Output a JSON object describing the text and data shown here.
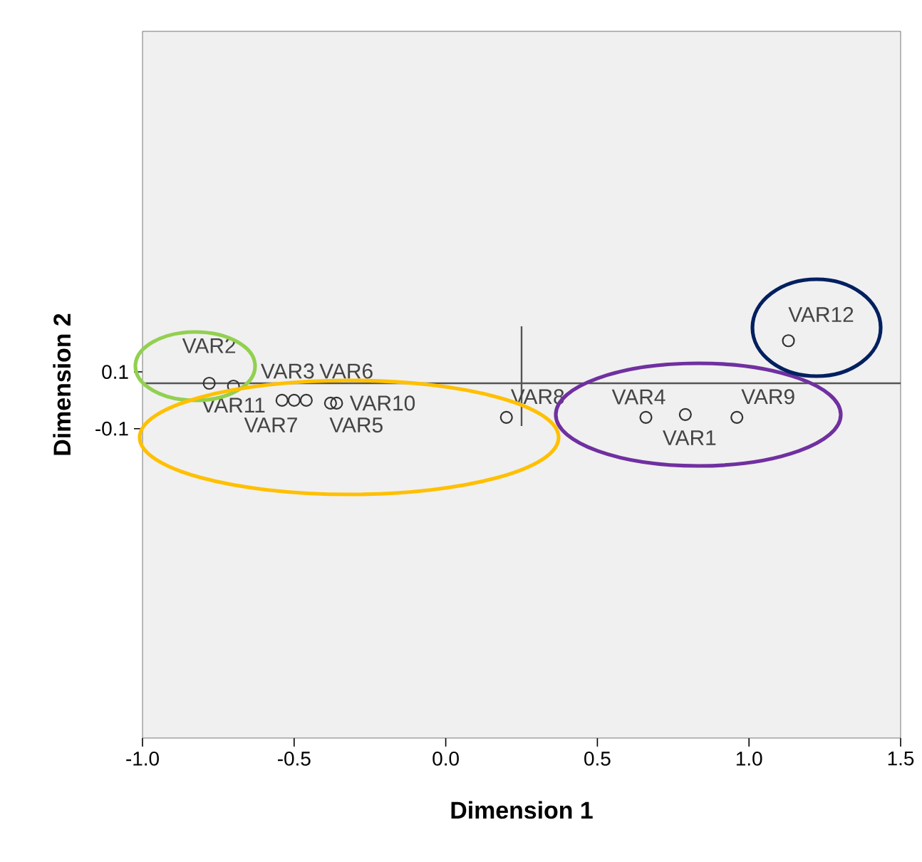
{
  "chart_data": {
    "type": "scatter",
    "xlabel": "Dimension 1",
    "ylabel": "Dimension 2",
    "xlim": [
      -1.0,
      1.5
    ],
    "ylim": [
      -1.19,
      1.3
    ],
    "xticks": [
      {
        "value": -1.0,
        "label": "-1.0"
      },
      {
        "value": -0.5,
        "label": "-0.5"
      },
      {
        "value": 0.0,
        "label": "0.0"
      },
      {
        "value": 0.5,
        "label": "0.5"
      },
      {
        "value": 1.0,
        "label": "1.0"
      },
      {
        "value": 1.5,
        "label": "1.5"
      }
    ],
    "yticks": [
      -0.1,
      0.1
    ],
    "grid": false,
    "marker": "circle",
    "ref_lines": [
      {
        "axis": "y",
        "value": 0.06,
        "color": "#555555"
      },
      {
        "axis": "x",
        "value": 0.25,
        "color": "#555555"
      }
    ],
    "series": [
      {
        "name": "VAR2",
        "color": "#333333",
        "x": [
          -0.78
        ],
        "values": [
          0.06
        ]
      },
      {
        "name": "VAR11",
        "color": "#333333",
        "x": [
          -0.7
        ],
        "values": [
          0.05
        ]
      },
      {
        "name": "VAR3",
        "color": "#333333",
        "x": [
          -0.54
        ],
        "values": [
          0.0
        ]
      },
      {
        "name": "VAR7",
        "color": "#333333",
        "x": [
          -0.5
        ],
        "values": [
          0.0
        ]
      },
      {
        "name": "VAR6",
        "color": "#333333",
        "x": [
          -0.46
        ],
        "values": [
          0.0
        ]
      },
      {
        "name": "VAR5",
        "color": "#333333",
        "x": [
          -0.38
        ],
        "values": [
          -0.01
        ]
      },
      {
        "name": "VAR10",
        "color": "#333333",
        "x": [
          -0.36
        ],
        "values": [
          -0.01
        ]
      },
      {
        "name": "VAR8",
        "color": "#333333",
        "x": [
          0.2
        ],
        "values": [
          -0.06
        ]
      },
      {
        "name": "VAR4",
        "color": "#333333",
        "x": [
          0.66
        ],
        "values": [
          -0.06
        ]
      },
      {
        "name": "VAR1",
        "color": "#333333",
        "x": [
          0.79
        ],
        "values": [
          -0.05
        ]
      },
      {
        "name": "VAR9",
        "color": "#333333",
        "x": [
          0.96
        ],
        "values": [
          -0.06
        ]
      },
      {
        "name": "VAR12",
        "color": "#333333",
        "x": [
          1.13
        ],
        "values": [
          0.21
        ]
      }
    ]
  }
}
